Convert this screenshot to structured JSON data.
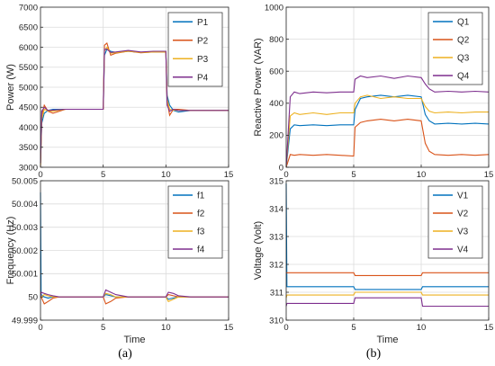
{
  "captions": [
    "(a)",
    "(b)"
  ],
  "chart_data": [
    {
      "type": "line",
      "title": "",
      "xlabel": "",
      "ylabel": "Power (W)",
      "xlim": [
        0,
        15
      ],
      "ylim": [
        3000,
        7000
      ],
      "xticks": [
        0,
        5,
        10,
        15
      ],
      "yticks": [
        3000,
        3500,
        4000,
        4500,
        5000,
        5500,
        6000,
        6500,
        7000
      ],
      "grid": true,
      "legend_position": "top-right",
      "series": [
        {
          "name": "P1",
          "color": "#0072BD",
          "x": [
            0,
            0.1,
            0.3,
            0.6,
            1,
            2,
            3,
            4,
            5,
            5.1,
            5.3,
            5.6,
            6,
            7,
            8,
            9,
            10,
            10.1,
            10.3,
            10.6,
            11,
            12,
            13,
            14,
            15
          ],
          "y": [
            3100,
            4100,
            4350,
            4420,
            4450,
            4450,
            4450,
            4450,
            4450,
            5800,
            5950,
            5900,
            5870,
            5900,
            5870,
            5880,
            5880,
            4800,
            4550,
            4420,
            4380,
            4420,
            4420,
            4420,
            4420
          ]
        },
        {
          "name": "P2",
          "color": "#D95319",
          "x": [
            0,
            0.1,
            0.3,
            0.6,
            1,
            2,
            3,
            4,
            5,
            5.1,
            5.3,
            5.6,
            6,
            7,
            8,
            9,
            10,
            10.1,
            10.3,
            10.6,
            11,
            12,
            13,
            14,
            15
          ],
          "y": [
            3000,
            4300,
            4550,
            4400,
            4350,
            4450,
            4450,
            4450,
            4450,
            6050,
            6100,
            5800,
            5850,
            5900,
            5860,
            5880,
            5880,
            4650,
            4300,
            4450,
            4450,
            4420,
            4420,
            4420,
            4420
          ]
        },
        {
          "name": "P3",
          "color": "#EDB120",
          "x": [
            0,
            0.1,
            0.3,
            0.6,
            1,
            2,
            3,
            4,
            5,
            5.1,
            5.3,
            5.6,
            6,
            7,
            8,
            9,
            10,
            10.1,
            10.3,
            10.6,
            11,
            12,
            13,
            14,
            15
          ],
          "y": [
            3050,
            4200,
            4450,
            4410,
            4400,
            4450,
            4450,
            4450,
            4450,
            5900,
            6000,
            5850,
            5860,
            5900,
            5870,
            5880,
            5880,
            4700,
            4450,
            4430,
            4420,
            4420,
            4420,
            4420,
            4420
          ]
        },
        {
          "name": "P4",
          "color": "#7E2F8E",
          "x": [
            0,
            0.1,
            0.3,
            0.6,
            1,
            2,
            3,
            4,
            5,
            5.1,
            5.3,
            5.6,
            6,
            7,
            8,
            9,
            10,
            10.1,
            10.3,
            10.6,
            11,
            12,
            13,
            14,
            15
          ],
          "y": [
            3100,
            4400,
            4500,
            4420,
            4430,
            4450,
            4450,
            4450,
            4450,
            5950,
            5950,
            5870,
            5880,
            5920,
            5880,
            5900,
            5900,
            4550,
            4400,
            4450,
            4420,
            4420,
            4420,
            4420,
            4420
          ]
        }
      ]
    },
    {
      "type": "line",
      "title": "",
      "xlabel": "Time",
      "ylabel": "Frequency (Hz)",
      "xlim": [
        0,
        15
      ],
      "ylim": [
        49.999,
        50.005
      ],
      "xticks": [
        0,
        5,
        10,
        15
      ],
      "yticks": [
        49.999,
        50,
        50.001,
        50.002,
        50.003,
        50.004,
        50.005
      ],
      "ytick_labels": [
        "49.999",
        "50",
        "50.001",
        "50.002",
        "50.003",
        "50.004",
        "50.005"
      ],
      "grid": true,
      "legend_position": "top-right",
      "series": [
        {
          "name": "f1",
          "color": "#0072BD",
          "x": [
            0,
            0.05,
            0.3,
            0.6,
            1,
            1.5,
            5,
            5.2,
            5.6,
            6,
            7,
            10,
            10.2,
            10.6,
            11,
            12,
            15
          ],
          "y": [
            50.0045,
            50.0001,
            50.0,
            49.99995,
            50.0,
            50.0,
            50.0,
            50.0001,
            50.00005,
            50.0,
            50.0,
            50.0,
            49.9999,
            49.99995,
            50.0,
            50.0,
            50.0
          ]
        },
        {
          "name": "f2",
          "color": "#D95319",
          "x": [
            0,
            0.05,
            0.3,
            0.6,
            1,
            1.5,
            5,
            5.2,
            5.6,
            6,
            7,
            10,
            10.2,
            10.6,
            11,
            12,
            15
          ],
          "y": [
            50.0,
            50.0,
            49.9997,
            49.9998,
            49.99995,
            50.0,
            50.0,
            49.9997,
            49.9998,
            49.99995,
            50.0,
            50.0,
            50.0001,
            50.00005,
            50.0,
            50.0,
            50.0
          ]
        },
        {
          "name": "f3",
          "color": "#EDB120",
          "x": [
            0,
            0.05,
            0.3,
            0.6,
            1,
            1.5,
            5,
            5.2,
            5.6,
            6,
            7,
            10,
            10.2,
            10.6,
            11,
            12,
            15
          ],
          "y": [
            50.0,
            50.0,
            50.0001,
            50.00005,
            50.0,
            50.0,
            50.0,
            50.00015,
            50.0001,
            50.0,
            50.0,
            50.0,
            49.9998,
            49.9999,
            50.0,
            50.0,
            50.0
          ]
        },
        {
          "name": "f4",
          "color": "#7E2F8E",
          "x": [
            0,
            0.05,
            0.3,
            0.6,
            1,
            1.5,
            5,
            5.2,
            5.6,
            6,
            7,
            10,
            10.2,
            10.6,
            11,
            12,
            15
          ],
          "y": [
            50.0,
            50.0002,
            50.00015,
            50.0001,
            50.00005,
            50.0,
            50.0,
            50.0003,
            50.0002,
            50.0001,
            50.0,
            50.0,
            50.0002,
            50.00015,
            50.00005,
            50.0,
            50.0
          ]
        }
      ]
    },
    {
      "type": "line",
      "title": "",
      "xlabel": "",
      "ylabel": "Reactive Power (VAR)",
      "xlim": [
        0,
        15
      ],
      "ylim": [
        0,
        1000
      ],
      "xticks": [
        0,
        5,
        10,
        15
      ],
      "yticks": [
        0,
        200,
        400,
        600,
        800,
        1000
      ],
      "grid": true,
      "legend_position": "top-right",
      "series": [
        {
          "name": "Q1",
          "color": "#0072BD",
          "x": [
            0,
            0.3,
            0.6,
            1,
            2,
            3,
            4,
            5,
            5.1,
            5.5,
            6,
            7,
            8,
            9,
            10,
            10.3,
            10.6,
            11,
            12,
            13,
            14,
            15
          ],
          "y": [
            0,
            240,
            265,
            260,
            265,
            260,
            265,
            265,
            360,
            430,
            440,
            450,
            440,
            450,
            440,
            330,
            290,
            270,
            275,
            270,
            275,
            270
          ]
        },
        {
          "name": "Q2",
          "color": "#D95319",
          "x": [
            0,
            0.3,
            0.6,
            1,
            2,
            3,
            4,
            5,
            5.1,
            5.5,
            6,
            7,
            8,
            9,
            10,
            10.3,
            10.6,
            11,
            12,
            13,
            14,
            15
          ],
          "y": [
            0,
            80,
            75,
            80,
            75,
            80,
            75,
            70,
            250,
            280,
            290,
            300,
            290,
            300,
            290,
            150,
            100,
            80,
            75,
            80,
            75,
            80
          ]
        },
        {
          "name": "Q3",
          "color": "#EDB120",
          "x": [
            0,
            0.3,
            0.6,
            1,
            2,
            3,
            4,
            5,
            5.1,
            5.5,
            6,
            7,
            8,
            9,
            10,
            10.3,
            10.6,
            11,
            12,
            13,
            14,
            15
          ],
          "y": [
            0,
            320,
            340,
            330,
            340,
            330,
            340,
            340,
            400,
            440,
            450,
            430,
            440,
            430,
            430,
            380,
            350,
            340,
            345,
            340,
            345,
            345
          ]
        },
        {
          "name": "Q4",
          "color": "#7E2F8E",
          "x": [
            0,
            0.3,
            0.6,
            1,
            2,
            3,
            4,
            5,
            5.1,
            5.5,
            6,
            7,
            8,
            9,
            10,
            10.3,
            10.6,
            11,
            12,
            13,
            14,
            15
          ],
          "y": [
            0,
            440,
            470,
            460,
            470,
            465,
            470,
            470,
            550,
            570,
            560,
            570,
            555,
            570,
            560,
            520,
            490,
            470,
            475,
            470,
            475,
            470
          ]
        }
      ]
    },
    {
      "type": "line",
      "title": "",
      "xlabel": "Time",
      "ylabel": "Voltage (Volt)",
      "xlim": [
        0,
        15
      ],
      "ylim": [
        310,
        315
      ],
      "xticks": [
        0,
        5,
        10,
        15
      ],
      "yticks": [
        310,
        311,
        312,
        313,
        314,
        315
      ],
      "grid": true,
      "legend_position": "top-right",
      "series": [
        {
          "name": "V1",
          "color": "#0072BD",
          "x": [
            0,
            0.05,
            0.5,
            5,
            5.1,
            10,
            10.1,
            15
          ],
          "y": [
            314.9,
            311.2,
            311.2,
            311.2,
            311.1,
            311.1,
            311.2,
            311.2
          ]
        },
        {
          "name": "V2",
          "color": "#D95319",
          "x": [
            0,
            0.05,
            0.5,
            5,
            5.1,
            10,
            10.1,
            15
          ],
          "y": [
            311.7,
            311.7,
            311.7,
            311.7,
            311.6,
            311.6,
            311.7,
            311.7
          ]
        },
        {
          "name": "V3",
          "color": "#EDB120",
          "x": [
            0,
            0.05,
            0.5,
            5,
            5.1,
            10,
            10.1,
            15
          ],
          "y": [
            310.8,
            310.9,
            310.9,
            310.9,
            311.0,
            311.0,
            310.9,
            310.9
          ]
        },
        {
          "name": "V4",
          "color": "#7E2F8E",
          "x": [
            0,
            0.05,
            0.5,
            5,
            5.1,
            10,
            10.1,
            15
          ],
          "y": [
            310.5,
            310.6,
            310.6,
            310.6,
            310.8,
            310.8,
            310.5,
            310.5
          ]
        }
      ]
    }
  ]
}
